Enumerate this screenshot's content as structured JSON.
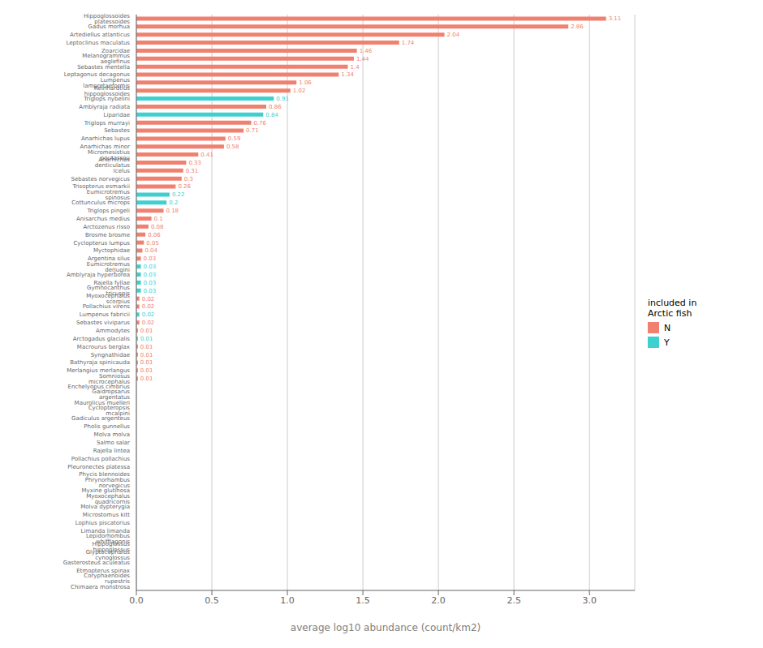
{
  "chart_data": {
    "type": "bar",
    "orientation": "horizontal",
    "stacked": true,
    "data_labels": true,
    "grid": true,
    "legend": "right",
    "xlabel": "average log10 abundance (count/km2)",
    "legend_title": "included in\nArctic fish",
    "xlim": [
      0,
      3.3
    ],
    "xticks": [
      {
        "value": 0,
        "label": "0.0"
      },
      0.5,
      {
        "value": 1,
        "label": "1.0"
      },
      1.5,
      {
        "value": 2,
        "label": "2.0"
      },
      2.5,
      {
        "value": 3,
        "label": "3.0"
      }
    ],
    "categories": [
      "Hippoglossoides platessoides",
      "Gadus morhua",
      "Artediellus atlanticus",
      "Leptoclinus maculatus",
      "Zoarcidae",
      "Melanogrammus aeglefinus",
      "Sebastes mentella",
      "Leptagonus decagonus",
      "Lumpenus lampretaeformis",
      "Reinhardtius hippoglossoides",
      "Triglops nybelini",
      "Amblyraja radiata",
      "Liparidae",
      "Triglops murrayi",
      "Sebastes",
      "Anarhichas lupus",
      "Anarhichas minor",
      "Micromesistius poutassou",
      "Anarhichas denticulatus",
      "Icelus",
      "Sebastes norvegicus",
      "Trisopterus esmarkii",
      "Eumicrotremus spinosus",
      "Cottunculus microps",
      "Triglops pingeli",
      "Anisarchus medius",
      "Arctozenus risso",
      "Brosme brosme",
      "Cyclopterus lumpus",
      "Myctophidae",
      "Argentina silus",
      "Eumicrotremus derjugini",
      "Amblyraja hyperborea",
      "Rajella fyllae",
      "Gymnocanthus tricuspis",
      "Myoxocephalus scorpius",
      "Pollachius virens",
      "Lumpenus fabricii",
      "Sebastes viviparus",
      "Ammodytes",
      "Arctogadus glacialis",
      "Macrourus berglax",
      "Syngnathidae",
      "Bathyraja spinicauda",
      "Merlangius merlangus",
      "Somniosus microcephalus",
      "Enchelyopus cimbrius",
      "Gaidropsarus argentatus",
      "Maurolicus muelleri",
      "Cyclopteropsis mcalpini",
      "Gadiculus argenteus",
      "Pholis gunnellus",
      "Molva molva",
      "Salmo salar",
      "Rajella lintea",
      "Pollachius pollachius",
      "Pleuronectes platessa",
      "Phycis blennoides",
      "Phrynorhambus norvegicus",
      "Myxine glutinosa",
      "Myoxocephalus quadricornis",
      "Molva dypterygia",
      "Microstomus kitt",
      "Lophius piscatorius",
      "Limanda limanda",
      "Lepidorhombus whiffiagonis",
      "Hippoglossus hippoglossus",
      "Glyptocephalus cynoglossus",
      "Gasterosteus aculeatus",
      "Etmopterus spinax",
      "Coryphaenoides rupestris",
      "Chimaera monstrosa"
    ],
    "series": [
      {
        "name": "N",
        "color": "#F08070",
        "values": [
          3.11,
          2.86,
          2.04,
          1.74,
          1.46,
          1.44,
          1.4,
          1.34,
          1.06,
          1.02,
          null,
          0.86,
          null,
          0.76,
          0.71,
          0.59,
          0.58,
          0.41,
          0.33,
          0.31,
          0.3,
          0.26,
          null,
          null,
          0.18,
          0.1,
          0.08,
          0.06,
          0.05,
          0.04,
          0.03,
          null,
          null,
          null,
          null,
          0.02,
          0.02,
          null,
          0.02,
          0.01,
          null,
          0.01,
          0.01,
          0.01,
          0.01,
          0.01,
          0,
          null,
          0,
          0,
          0,
          0,
          0,
          0,
          0,
          0,
          0,
          0,
          0,
          0,
          0,
          0,
          0,
          0,
          0,
          0,
          0,
          0,
          0,
          0,
          0,
          0
        ]
      },
      {
        "name": "Y",
        "color": "#3ECFCF",
        "values": [
          null,
          null,
          null,
          null,
          null,
          null,
          null,
          null,
          null,
          null,
          0.91,
          null,
          0.84,
          null,
          null,
          null,
          null,
          null,
          null,
          null,
          null,
          null,
          0.22,
          0.2,
          null,
          null,
          null,
          null,
          null,
          null,
          null,
          0.03,
          0.03,
          0.03,
          0.03,
          null,
          null,
          0.02,
          null,
          null,
          0.01,
          null,
          null,
          null,
          null,
          null,
          null,
          0,
          null,
          null,
          null,
          null,
          null,
          null,
          null,
          null,
          null,
          null,
          null,
          null,
          null,
          null,
          null,
          null,
          null,
          null,
          null,
          null,
          null,
          null,
          null,
          null
        ]
      }
    ]
  }
}
